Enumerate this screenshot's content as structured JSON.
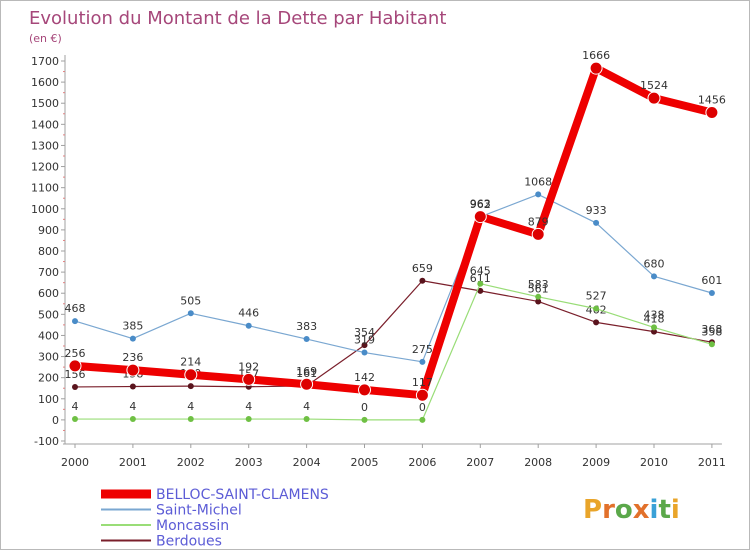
{
  "chart_data": {
    "type": "line",
    "title": "Evolution du Montant de la Dette par Habitant",
    "ylabel": "(en €)",
    "xlabel": "",
    "categories": [
      "2000",
      "2001",
      "2002",
      "2003",
      "2004",
      "2005",
      "2006",
      "2007",
      "2008",
      "2009",
      "2010",
      "2011"
    ],
    "ylim": [
      -100,
      1700
    ],
    "yticks": [
      -100,
      0,
      100,
      200,
      300,
      400,
      500,
      600,
      700,
      800,
      900,
      1000,
      1100,
      1200,
      1300,
      1400,
      1500,
      1600,
      1700
    ],
    "grid": false,
    "legend_position": "bottom-left",
    "series": [
      {
        "name": "Berdoues",
        "color": "#7a1f2b",
        "marker": "#5a141d",
        "width": 1.2,
        "values": [
          156,
          158,
          160,
          157,
          161,
          354,
          659,
          611,
          561,
          462,
          418,
          368
        ],
        "labels": [
          "156",
          "158",
          "160",
          "157",
          "161",
          "354",
          "659",
          "611",
          "561",
          "462",
          "418",
          "368"
        ]
      },
      {
        "name": "Moncassin",
        "color": "#99dd77",
        "marker": "#6fc044",
        "width": 1.2,
        "values": [
          4,
          4,
          4,
          4,
          4,
          0,
          0,
          645,
          583,
          527,
          438,
          358
        ],
        "labels": [
          "4",
          "4",
          "4",
          "4",
          "4",
          "0",
          "0",
          "645",
          "583",
          "527",
          "438",
          "358"
        ]
      },
      {
        "name": "Saint-Michel",
        "color": "#7aa7d1",
        "marker": "#4a8cc8",
        "width": 1.2,
        "values": [
          468,
          385,
          505,
          446,
          383,
          319,
          275,
          962,
          1068,
          933,
          680,
          601
        ],
        "labels": [
          "468",
          "385",
          "505",
          "446",
          "383",
          "319",
          "275",
          "962",
          "1068",
          "933",
          "680",
          "601"
        ]
      },
      {
        "name": "BELLOC-SAINT-CLAMENS",
        "color": "#ee0000",
        "marker": "#dd0000",
        "width": 8,
        "values": [
          256,
          236,
          214,
          192,
          169,
          142,
          117,
          963,
          879,
          1666,
          1524,
          1456
        ],
        "labels": [
          "256",
          "236",
          "214",
          "192",
          "169",
          "142",
          "117",
          "963",
          "879",
          "1666",
          "1524",
          "1456"
        ]
      }
    ],
    "legend_order": [
      "BELLOC-SAINT-CLAMENS",
      "Saint-Michel",
      "Moncassin",
      "Berdoues"
    ]
  },
  "brand": {
    "letters": [
      "P",
      "r",
      "o",
      "x",
      "i",
      "t",
      "i"
    ],
    "colors": [
      "#e9a52a",
      "#e2712b",
      "#5ba84a",
      "#e2712b",
      "#3aa1d7",
      "#5ba84a",
      "#e9a52a"
    ]
  }
}
